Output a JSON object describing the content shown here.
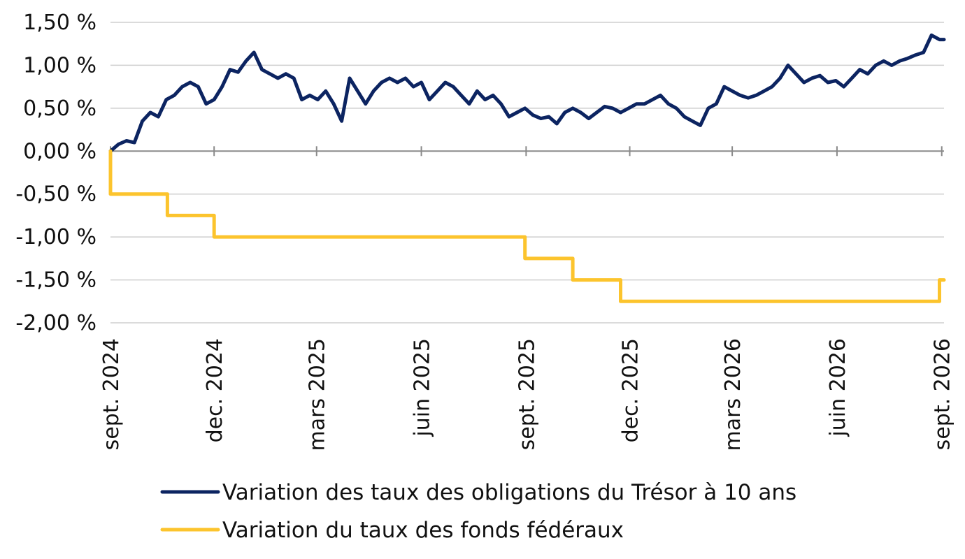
{
  "chart_data": {
    "type": "line",
    "title": "",
    "xlabel": "",
    "ylabel": "",
    "ylim": [
      -2.0,
      1.5
    ],
    "xlim": [
      "2024-09-18",
      "2026-09-20"
    ],
    "yticks": [
      1.5,
      1.0,
      0.5,
      0.0,
      -0.5,
      -1.0,
      -1.5,
      -2.0
    ],
    "ytick_labels": [
      "1,50 %",
      "1,00 %",
      "0,50 %",
      "0,00 %",
      "-0,50 %",
      "-1,00 %",
      "-1,50 %",
      "-2,00 %"
    ],
    "xticks": [
      "2024-09-18",
      "2024-12-18",
      "2025-03-18",
      "2025-06-18",
      "2025-09-18",
      "2025-12-18",
      "2026-03-18",
      "2026-06-18",
      "2026-09-18"
    ],
    "xtick_labels": [
      "sept. 2024",
      "dec. 2024",
      "mars 2025",
      "juin 2025",
      "sept. 2025",
      "dec. 2025",
      "mars 2026",
      "juin 2026",
      "sept. 2026"
    ],
    "grid": true,
    "legend_position": "bottom",
    "series": [
      {
        "name": "Variation des taux des obligations du Trésor à 10 ans",
        "color": "#0c2461",
        "x": [
          "2024-09-18",
          "2024-09-25",
          "2024-10-02",
          "2024-10-09",
          "2024-10-16",
          "2024-10-23",
          "2024-10-30",
          "2024-11-06",
          "2024-11-13",
          "2024-11-20",
          "2024-11-27",
          "2024-12-04",
          "2024-12-11",
          "2024-12-18",
          "2024-12-25",
          "2025-01-01",
          "2025-01-08",
          "2025-01-15",
          "2025-01-22",
          "2025-01-29",
          "2025-02-05",
          "2025-02-12",
          "2025-02-19",
          "2025-02-26",
          "2025-03-05",
          "2025-03-12",
          "2025-03-19",
          "2025-03-26",
          "2025-04-02",
          "2025-04-09",
          "2025-04-16",
          "2025-04-23",
          "2025-04-30",
          "2025-05-07",
          "2025-05-14",
          "2025-05-21",
          "2025-05-28",
          "2025-06-04",
          "2025-06-11",
          "2025-06-18",
          "2025-06-25",
          "2025-07-02",
          "2025-07-09",
          "2025-07-16",
          "2025-07-23",
          "2025-07-30",
          "2025-08-06",
          "2025-08-13",
          "2025-08-20",
          "2025-08-27",
          "2025-09-03",
          "2025-09-10",
          "2025-09-17",
          "2025-09-24",
          "2025-10-01",
          "2025-10-08",
          "2025-10-15",
          "2025-10-22",
          "2025-10-29",
          "2025-11-05",
          "2025-11-12",
          "2025-11-19",
          "2025-11-26",
          "2025-12-03",
          "2025-12-10",
          "2025-12-17",
          "2025-12-24",
          "2025-12-31",
          "2026-01-07",
          "2026-01-14",
          "2026-01-21",
          "2026-01-28",
          "2026-02-04",
          "2026-02-11",
          "2026-02-18",
          "2026-02-25",
          "2026-03-04",
          "2026-03-11",
          "2026-03-18",
          "2026-03-25",
          "2026-04-01",
          "2026-04-08",
          "2026-04-15",
          "2026-04-22",
          "2026-04-29",
          "2026-05-06",
          "2026-05-13",
          "2026-05-20",
          "2026-05-27",
          "2026-06-03",
          "2026-06-10",
          "2026-06-17",
          "2026-06-24",
          "2026-07-01",
          "2026-07-08",
          "2026-07-15",
          "2026-07-22",
          "2026-07-29",
          "2026-08-05",
          "2026-08-12",
          "2026-08-19",
          "2026-08-26",
          "2026-09-02",
          "2026-09-09",
          "2026-09-16",
          "2026-09-20"
        ],
        "values": [
          0.0,
          0.08,
          0.12,
          0.1,
          0.35,
          0.45,
          0.4,
          0.6,
          0.65,
          0.75,
          0.8,
          0.75,
          0.55,
          0.6,
          0.75,
          0.95,
          0.92,
          1.05,
          1.15,
          0.95,
          0.9,
          0.85,
          0.9,
          0.85,
          0.6,
          0.65,
          0.6,
          0.7,
          0.55,
          0.35,
          0.85,
          0.7,
          0.55,
          0.7,
          0.8,
          0.85,
          0.8,
          0.85,
          0.75,
          0.8,
          0.6,
          0.7,
          0.8,
          0.75,
          0.65,
          0.55,
          0.7,
          0.6,
          0.65,
          0.55,
          0.4,
          0.45,
          0.5,
          0.42,
          0.38,
          0.4,
          0.32,
          0.45,
          0.5,
          0.45,
          0.38,
          0.45,
          0.52,
          0.5,
          0.45,
          0.5,
          0.55,
          0.55,
          0.6,
          0.65,
          0.55,
          0.5,
          0.4,
          0.35,
          0.3,
          0.5,
          0.55,
          0.75,
          0.7,
          0.65,
          0.62,
          0.65,
          0.7,
          0.75,
          0.85,
          1.0,
          0.9,
          0.8,
          0.85,
          0.88,
          0.8,
          0.82,
          0.75,
          0.85,
          0.95,
          0.9,
          1.0,
          1.05,
          1.0,
          1.05,
          1.08,
          1.12,
          1.15,
          1.35,
          1.3,
          1.3
        ]
      },
      {
        "name": "Variation du taux des fonds fédéraux",
        "color": "#fcc42d",
        "step": true,
        "x": [
          "2024-09-18",
          "2024-11-07",
          "2024-12-18",
          "2025-09-17",
          "2025-10-29",
          "2025-12-10",
          "2026-09-16",
          "2026-09-20"
        ],
        "values": [
          -0.5,
          -0.75,
          -1.0,
          -1.25,
          -1.5,
          -1.75,
          -1.5,
          -1.5
        ]
      }
    ]
  }
}
